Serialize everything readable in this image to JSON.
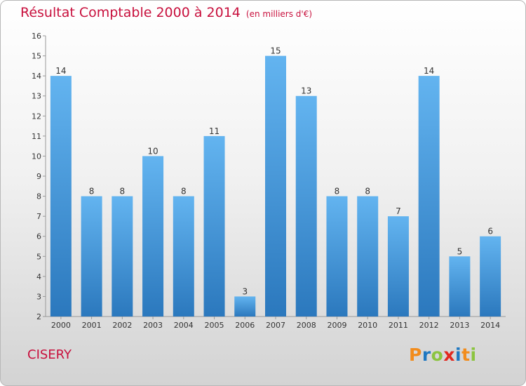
{
  "title": "Résultat Comptable 2000 à 2014",
  "subtitle": "(en milliers d'€)",
  "commune": "CISERY",
  "logo": {
    "letters": [
      "P",
      "r",
      "o",
      "x",
      "i",
      "t",
      "i"
    ],
    "colors": [
      "#f28c1c",
      "#1f78c1",
      "#8bc43f",
      "#e2281e",
      "#1f78c1",
      "#f28c1c",
      "#8bc43f"
    ]
  },
  "colors": {
    "bar_light": "#63b4f0",
    "bar_dark": "#2b78bd",
    "title": "#c8103d"
  },
  "chart_data": {
    "type": "bar",
    "title": "Résultat Comptable 2000 à 2014",
    "subtitle": "(en milliers d'€)",
    "xlabel": "",
    "ylabel": "",
    "categories": [
      "2000",
      "2001",
      "2002",
      "2003",
      "2004",
      "2005",
      "2006",
      "2007",
      "2008",
      "2009",
      "2010",
      "2011",
      "2012",
      "2013",
      "2014"
    ],
    "values": [
      14,
      8,
      8,
      10,
      8,
      11,
      3,
      15,
      13,
      8,
      8,
      7,
      14,
      5,
      6
    ],
    "yticks": [
      "2",
      "3",
      "4",
      "5",
      "6",
      "7",
      "8",
      "9",
      "10",
      "11",
      "12",
      "13",
      "14",
      "15",
      "16"
    ],
    "ylim": [
      2,
      16
    ],
    "grid": false,
    "data_labels": true
  }
}
